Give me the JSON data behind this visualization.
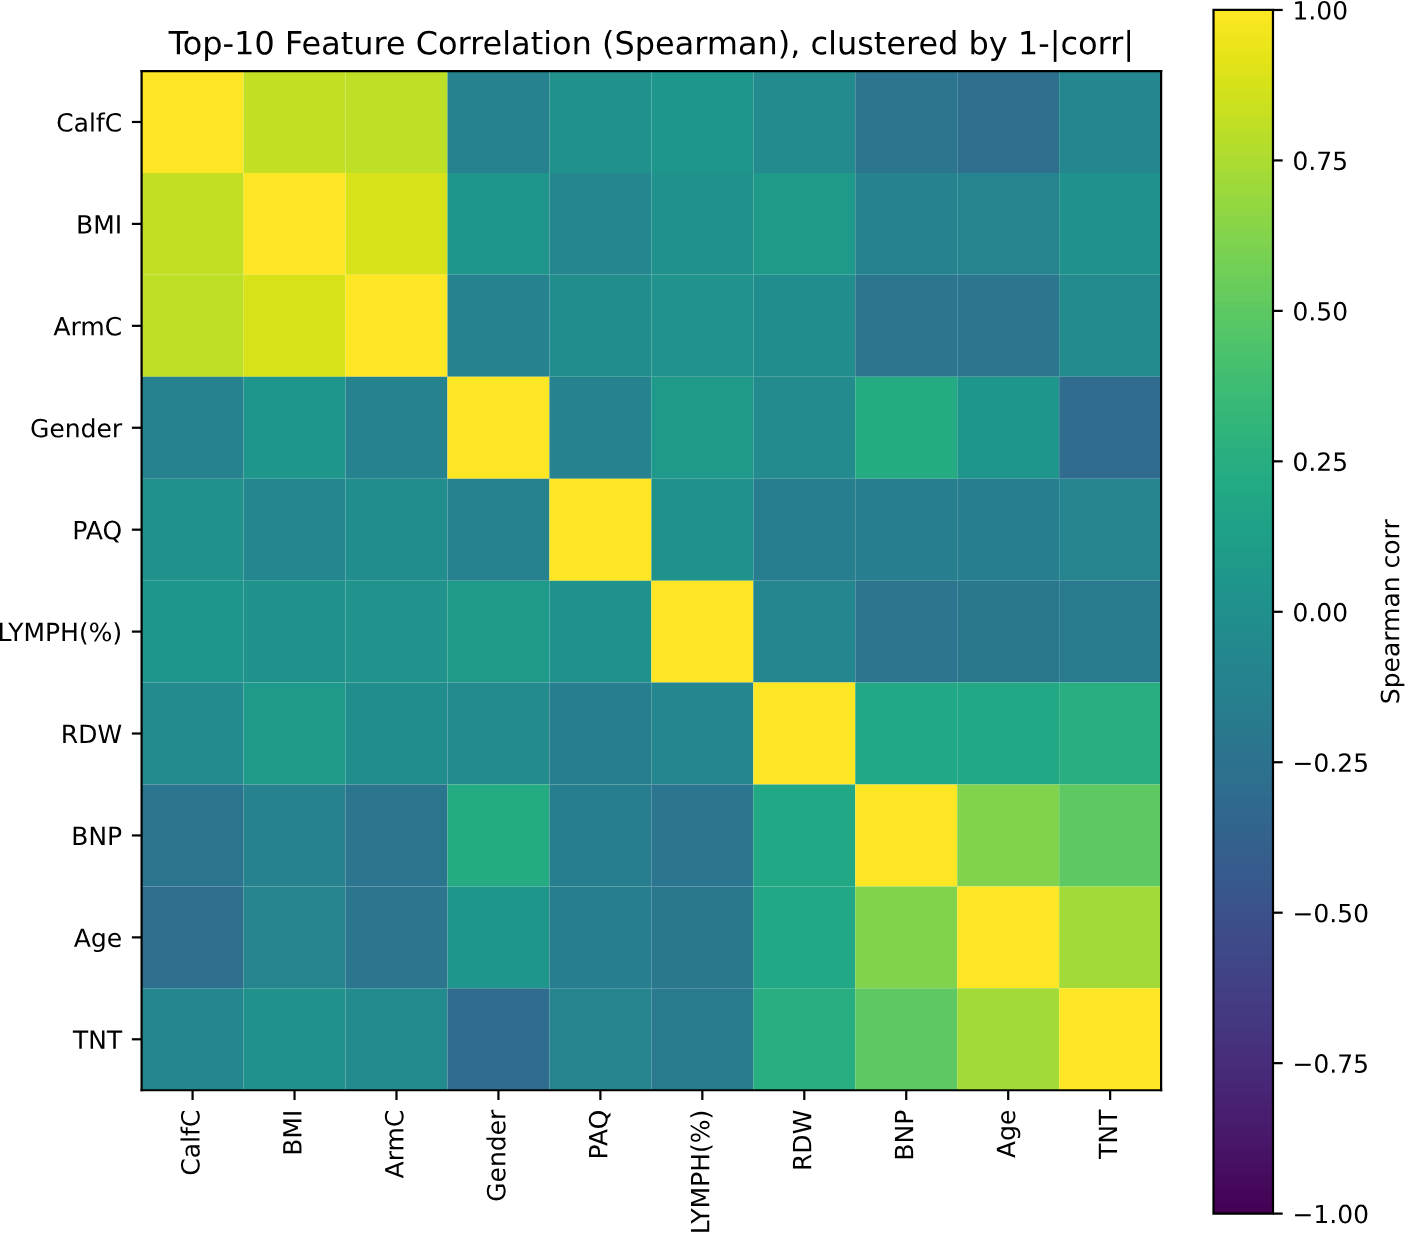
{
  "chart_data": {
    "type": "heatmap",
    "title": "Top-10 Feature Correlation (Spearman), clustered by 1-|corr|",
    "clabel": "Spearman corr",
    "categories": [
      "CalfC",
      "BMI",
      "ArmC",
      "Gender",
      "PAQ",
      "LYMPH(%)",
      "RDW",
      "BNP",
      "Age",
      "TNT"
    ],
    "y_categories": [
      "CalfC",
      "BMI",
      "ArmC",
      "Gender",
      "PAQ",
      "LYMPH(%)",
      "RDW",
      "BNP",
      "Age",
      "TNT"
    ],
    "cells": [
      [
        1,
        0.82,
        0.8,
        -0.12,
        0.0,
        0.05,
        -0.05,
        -0.22,
        -0.28,
        -0.08
      ],
      [
        0.82,
        1,
        0.88,
        0.05,
        -0.08,
        0.02,
        0.08,
        -0.12,
        -0.1,
        0.02
      ],
      [
        0.8,
        0.88,
        1,
        -0.12,
        -0.02,
        0.03,
        -0.02,
        -0.22,
        -0.22,
        -0.05
      ],
      [
        -0.12,
        0.05,
        -0.12,
        1,
        -0.12,
        0.08,
        -0.05,
        0.22,
        0.05,
        -0.3
      ],
      [
        0.0,
        -0.08,
        -0.02,
        -0.12,
        1,
        0.02,
        -0.15,
        -0.15,
        -0.15,
        -0.1
      ],
      [
        0.05,
        0.02,
        0.03,
        0.08,
        0.02,
        1,
        -0.08,
        -0.22,
        -0.2,
        -0.18
      ],
      [
        -0.05,
        0.08,
        -0.02,
        -0.05,
        -0.15,
        -0.08,
        1,
        0.2,
        0.2,
        0.25
      ],
      [
        -0.22,
        -0.12,
        -0.22,
        0.22,
        -0.15,
        -0.22,
        0.2,
        1,
        0.62,
        0.5
      ],
      [
        -0.28,
        -0.1,
        -0.22,
        0.05,
        -0.15,
        -0.2,
        0.2,
        0.62,
        1,
        0.72
      ],
      [
        -0.08,
        0.02,
        -0.05,
        -0.3,
        -0.1,
        -0.18,
        0.25,
        0.5,
        0.72,
        1
      ]
    ],
    "clim": [
      -1,
      1
    ],
    "cticks": [
      {
        "value": -1,
        "label": "−1.00"
      },
      {
        "value": -0.75,
        "label": "−0.75"
      },
      {
        "value": -0.5,
        "label": "−0.50"
      },
      {
        "value": -0.25,
        "label": "−0.25"
      },
      {
        "value": 0,
        "label": "0.00"
      },
      {
        "value": 0.25,
        "label": "0.25"
      },
      {
        "value": 0.5,
        "label": "0.50"
      },
      {
        "value": 0.75,
        "label": "0.75"
      },
      {
        "value": 1,
        "label": "1.00"
      }
    ],
    "grid": false
  }
}
